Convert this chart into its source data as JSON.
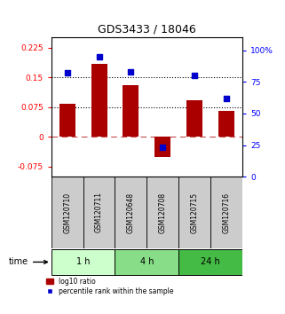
{
  "title": "GDS3433 / 18046",
  "samples": [
    "GSM120710",
    "GSM120711",
    "GSM120648",
    "GSM120708",
    "GSM120715",
    "GSM120716"
  ],
  "log10_ratio": [
    0.083,
    0.185,
    0.13,
    -0.05,
    0.093,
    0.065
  ],
  "percentile_rank": [
    0.82,
    0.95,
    0.83,
    0.23,
    0.8,
    0.62
  ],
  "groups": [
    {
      "label": "1 h",
      "indices": [
        0,
        1
      ],
      "color": "#ccffcc"
    },
    {
      "label": "4 h",
      "indices": [
        2,
        3
      ],
      "color": "#88dd88"
    },
    {
      "label": "24 h",
      "indices": [
        4,
        5
      ],
      "color": "#44bb44"
    }
  ],
  "ylim_left": [
    -0.1,
    0.25
  ],
  "ylim_right": [
    0.0,
    1.1
  ],
  "yticks_left": [
    -0.075,
    0,
    0.075,
    0.15,
    0.225
  ],
  "yticks_left_labels": [
    "-0.075",
    "0",
    "0.075",
    "0.15",
    "0.225"
  ],
  "yticks_right": [
    0,
    0.25,
    0.5,
    0.75,
    1.0
  ],
  "yticks_right_labels": [
    "0",
    "25",
    "50",
    "75",
    "100%"
  ],
  "hlines_dotted": [
    0.075,
    0.15
  ],
  "hline_dashed": 0.0,
  "bar_color": "#aa0000",
  "dot_color": "#0000cc",
  "bar_width": 0.5,
  "background_color": "#ffffff",
  "legend_bar_label": "log10 ratio",
  "legend_dot_label": "percentile rank within the sample"
}
